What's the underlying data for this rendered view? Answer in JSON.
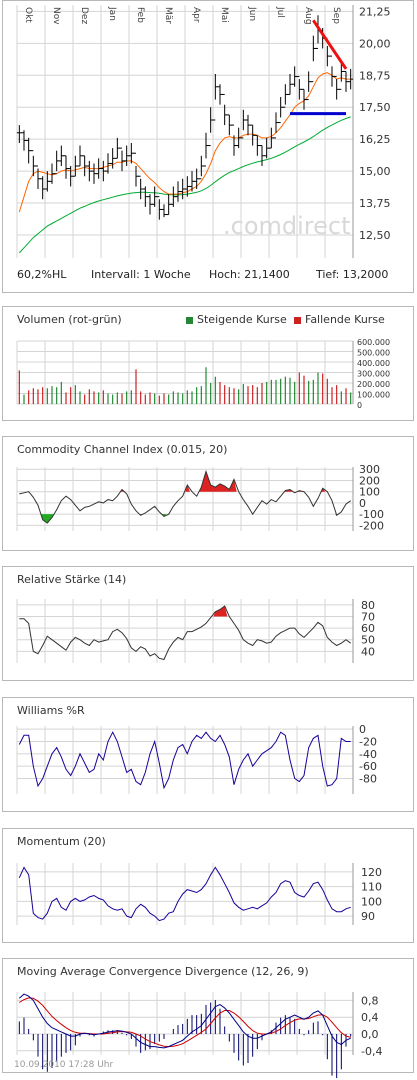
{
  "main": {
    "info": {
      "hl": "60,2%HL",
      "interval": "Intervall: 1 Woche",
      "high": "Hoch: 21,1400",
      "low": "Tief: 13,2000"
    },
    "watermark": ".comdirect",
    "colors": {
      "price": "#000000",
      "ma_short": "#ff6600",
      "ma_long": "#00aa33",
      "trend_red": "#ee1111",
      "support_blue": "#0000cc",
      "grid": "#cccccc"
    }
  },
  "volume_panel": {
    "title": "Volumen (rot-grün)",
    "legend_up": "Steigende Kurse",
    "legend_down": "Fallende Kurse",
    "color_up": "#228833",
    "color_down": "#cc2222"
  },
  "cci_panel": {
    "title": "Commodity Channel Index (0.015, 20)"
  },
  "rsi_panel": {
    "title": "Relative Stärke (14)"
  },
  "williams_panel": {
    "title": "Williams %R"
  },
  "momentum_panel": {
    "title": "Momentum (20)"
  },
  "macd_panel": {
    "title": "Moving Average Convergence Divergence (12, 26, 9)"
  },
  "footer": {
    "timestamp": "10.09.2010 17:28 Uhr"
  },
  "chart_data": [
    {
      "type": "candlestick",
      "x_labels": [
        "Okt",
        "Nov",
        "Dez",
        "Jan",
        "Feb",
        "Mär",
        "Apr",
        "Mai",
        "Jun",
        "Jul",
        "Aug",
        "Sep"
      ],
      "y_ticks": [
        "21,25",
        "20,00",
        "18,75",
        "17,50",
        "16,25",
        "15,00",
        "13,75",
        "12,50"
      ],
      "ylim": [
        11.6,
        21.5
      ],
      "grid": true,
      "close": [
        16.5,
        16.2,
        15.8,
        15.2,
        14.7,
        14.3,
        14.6,
        14.9,
        15.4,
        15.6,
        15.1,
        14.8,
        15.2,
        15.6,
        15.2,
        15.0,
        14.9,
        15.1,
        15.0,
        15.3,
        15.5,
        15.9,
        15.4,
        15.6,
        15.7,
        14.8,
        14.3,
        14.0,
        13.7,
        14.0,
        13.5,
        13.3,
        13.7,
        14.0,
        14.2,
        14.3,
        14.4,
        14.6,
        14.7,
        15.2,
        16.0,
        17.0,
        18.3,
        18.0,
        17.2,
        16.8,
        16.0,
        16.3,
        17.0,
        16.8,
        16.4,
        16.0,
        15.6,
        15.9,
        16.3,
        16.9,
        17.5,
        18.0,
        18.4,
        18.7,
        18.2,
        17.8,
        18.5,
        19.8,
        20.5,
        20.2,
        19.5,
        18.7,
        18.2,
        18.9,
        18.5,
        18.6
      ],
      "high": [
        16.8,
        16.6,
        16.3,
        15.6,
        15.1,
        14.8,
        15.0,
        15.3,
        15.8,
        16.0,
        15.6,
        15.2,
        15.6,
        16.0,
        15.6,
        15.4,
        15.3,
        15.5,
        15.4,
        15.7,
        15.9,
        16.3,
        15.8,
        16.0,
        16.1,
        15.2,
        14.7,
        14.4,
        14.1,
        14.4,
        13.9,
        13.7,
        14.1,
        14.4,
        14.6,
        14.7,
        14.8,
        15.0,
        15.1,
        15.6,
        16.5,
        17.5,
        18.8,
        18.4,
        17.6,
        17.2,
        16.4,
        16.7,
        17.4,
        17.2,
        16.8,
        16.4,
        16.0,
        16.3,
        16.7,
        17.3,
        17.9,
        18.4,
        18.8,
        19.1,
        18.6,
        18.2,
        18.9,
        20.3,
        21.1,
        20.6,
        19.9,
        19.1,
        18.6,
        19.3,
        18.9,
        19.0
      ],
      "low": [
        16.1,
        15.8,
        15.3,
        14.8,
        14.3,
        13.9,
        14.2,
        14.5,
        15.0,
        15.2,
        14.7,
        14.4,
        14.8,
        15.2,
        14.8,
        14.6,
        14.5,
        14.7,
        14.6,
        14.9,
        15.1,
        15.5,
        15.0,
        15.2,
        15.3,
        14.4,
        13.9,
        13.6,
        13.3,
        13.6,
        13.1,
        13.2,
        13.3,
        13.6,
        13.8,
        13.9,
        14.0,
        14.2,
        14.3,
        14.8,
        15.5,
        16.5,
        17.8,
        17.6,
        16.8,
        16.4,
        15.6,
        15.9,
        16.6,
        16.4,
        16.0,
        15.6,
        15.2,
        15.5,
        15.9,
        16.5,
        17.1,
        17.6,
        18.0,
        18.3,
        17.8,
        17.4,
        18.1,
        19.3,
        20.0,
        19.8,
        19.1,
        18.3,
        17.8,
        18.5,
        18.1,
        18.2
      ],
      "ma_short": [
        13.4,
        14.0,
        14.6,
        14.9,
        15.0,
        14.95,
        14.9,
        14.85,
        14.9,
        15.0,
        15.05,
        15.0,
        15.05,
        15.1,
        15.15,
        15.1,
        15.1,
        15.1,
        15.15,
        15.2,
        15.25,
        15.35,
        15.35,
        15.4,
        15.4,
        15.3,
        15.1,
        14.9,
        14.7,
        14.55,
        14.35,
        14.2,
        14.1,
        14.1,
        14.1,
        14.15,
        14.2,
        14.3,
        14.4,
        14.6,
        14.9,
        15.3,
        15.8,
        16.1,
        16.3,
        16.35,
        16.3,
        16.3,
        16.4,
        16.45,
        16.45,
        16.4,
        16.3,
        16.3,
        16.35,
        16.5,
        16.7,
        16.95,
        17.2,
        17.5,
        17.65,
        17.75,
        17.95,
        18.3,
        18.65,
        18.8,
        18.85,
        18.75,
        18.6,
        18.65,
        18.6,
        18.6
      ],
      "ma_long": [
        11.8,
        12.0,
        12.2,
        12.4,
        12.55,
        12.7,
        12.85,
        12.95,
        13.05,
        13.15,
        13.25,
        13.35,
        13.45,
        13.55,
        13.62,
        13.7,
        13.77,
        13.83,
        13.88,
        13.93,
        13.98,
        14.03,
        14.07,
        14.11,
        14.14,
        14.16,
        14.17,
        14.17,
        14.16,
        14.15,
        14.13,
        14.1,
        14.08,
        14.07,
        14.07,
        14.08,
        14.1,
        14.13,
        14.17,
        14.23,
        14.32,
        14.44,
        14.58,
        14.72,
        14.84,
        14.94,
        15.02,
        15.1,
        15.18,
        15.25,
        15.31,
        15.36,
        15.4,
        15.45,
        15.5,
        15.57,
        15.65,
        15.74,
        15.84,
        15.95,
        16.05,
        16.14,
        16.24,
        16.35,
        16.48,
        16.6,
        16.71,
        16.81,
        16.9,
        16.99,
        17.06,
        17.12
      ],
      "trend_line": [
        [
          63,
          20.9
        ],
        [
          70,
          19.0
        ]
      ],
      "support_line": [
        [
          58,
          17.25
        ],
        [
          70,
          17.25
        ]
      ]
    },
    {
      "type": "bar",
      "name": "Volumen",
      "y_ticks": [
        "600.000",
        "500.000",
        "400.000",
        "300.000",
        "200.000",
        "100.000",
        "0"
      ],
      "ylim": [
        0,
        600000
      ],
      "values": [
        320000,
        90000,
        130000,
        150000,
        140000,
        160000,
        150000,
        170000,
        160000,
        210000,
        110000,
        160000,
        180000,
        120000,
        90000,
        140000,
        120000,
        110000,
        130000,
        100000,
        90000,
        110000,
        100000,
        120000,
        130000,
        330000,
        120000,
        90000,
        110000,
        100000,
        80000,
        100000,
        90000,
        120000,
        110000,
        100000,
        130000,
        120000,
        160000,
        170000,
        350000,
        200000,
        260000,
        210000,
        180000,
        160000,
        150000,
        140000,
        190000,
        170000,
        180000,
        160000,
        200000,
        210000,
        230000,
        230000,
        240000,
        260000,
        250000,
        210000,
        300000,
        270000,
        220000,
        230000,
        300000,
        290000,
        240000,
        160000,
        180000,
        120000,
        150000,
        110000
      ],
      "rising": [
        false,
        true,
        false,
        false,
        false,
        false,
        true,
        true,
        true,
        true,
        false,
        false,
        true,
        true,
        false,
        false,
        false,
        true,
        false,
        true,
        true,
        true,
        false,
        true,
        true,
        false,
        false,
        false,
        false,
        true,
        false,
        false,
        true,
        true,
        true,
        true,
        true,
        true,
        true,
        true,
        true,
        true,
        true,
        false,
        false,
        false,
        false,
        true,
        true,
        false,
        false,
        false,
        false,
        true,
        true,
        true,
        true,
        true,
        true,
        true,
        false,
        false,
        true,
        true,
        true,
        false,
        false,
        false,
        false,
        true,
        false,
        true
      ]
    },
    {
      "type": "line",
      "name": "Commodity Channel Index",
      "y_ticks": [
        "300",
        "200",
        "100",
        "0",
        "-100",
        "-200"
      ],
      "ylim": [
        -250,
        320
      ],
      "overbought": 100,
      "oversold": -100,
      "values": [
        80,
        90,
        100,
        50,
        -20,
        -150,
        -180,
        -130,
        -60,
        20,
        60,
        30,
        -20,
        -70,
        -40,
        -30,
        -10,
        10,
        0,
        30,
        20,
        60,
        120,
        80,
        -10,
        -70,
        -110,
        -90,
        -60,
        -30,
        -80,
        -120,
        -100,
        -30,
        20,
        60,
        160,
        100,
        60,
        140,
        280,
        160,
        140,
        170,
        150,
        120,
        210,
        100,
        30,
        -30,
        -100,
        -40,
        20,
        -10,
        30,
        10,
        60,
        110,
        120,
        90,
        110,
        100,
        50,
        -30,
        40,
        130,
        100,
        20,
        -110,
        -80,
        -10,
        20
      ]
    },
    {
      "type": "line",
      "name": "Relative Stärke",
      "y_ticks": [
        "80",
        "70",
        "60",
        "50",
        "40"
      ],
      "ylim": [
        30,
        85
      ],
      "overbought": 70,
      "values": [
        68,
        68,
        64,
        40,
        38,
        45,
        53,
        50,
        47,
        44,
        41,
        48,
        52,
        50,
        47,
        45,
        50,
        48,
        49,
        50,
        57,
        59,
        56,
        51,
        43,
        40,
        44,
        42,
        36,
        38,
        34,
        33,
        42,
        48,
        52,
        50,
        57,
        57,
        59,
        61,
        64,
        69,
        74,
        76,
        79,
        70,
        64,
        58,
        50,
        47,
        45,
        50,
        49,
        47,
        48,
        53,
        56,
        58,
        60,
        60,
        55,
        52,
        56,
        60,
        65,
        62,
        52,
        48,
        45,
        47,
        50,
        47
      ]
    },
    {
      "type": "line",
      "name": "Williams %R",
      "y_ticks": [
        "0",
        "-20",
        "-40",
        "-60",
        "-80"
      ],
      "ylim": [
        -105,
        5
      ],
      "values": [
        -25,
        -10,
        -10,
        -60,
        -92,
        -80,
        -60,
        -40,
        -30,
        -45,
        -65,
        -75,
        -60,
        -40,
        -55,
        -70,
        -65,
        -40,
        -50,
        -20,
        -5,
        -20,
        -45,
        -70,
        -65,
        -85,
        -90,
        -70,
        -40,
        -20,
        -55,
        -95,
        -80,
        -50,
        -30,
        -25,
        -40,
        -20,
        -10,
        -15,
        -5,
        -15,
        -20,
        -10,
        -25,
        -45,
        -90,
        -65,
        -50,
        -40,
        -60,
        -50,
        -40,
        -35,
        -30,
        -20,
        -5,
        -10,
        -50,
        -80,
        -85,
        -75,
        -30,
        -15,
        -10,
        -60,
        -92,
        -90,
        -80,
        -15,
        -20,
        -20
      ]
    },
    {
      "type": "line",
      "name": "Momentum",
      "y_ticks": [
        "120",
        "110",
        "100",
        "90"
      ],
      "ylim": [
        84,
        126
      ],
      "values": [
        116,
        123,
        118,
        92,
        89,
        88,
        92,
        100,
        102,
        96,
        94,
        100,
        102,
        100,
        101,
        103,
        104,
        102,
        101,
        97,
        95,
        94,
        95,
        90,
        89,
        95,
        98,
        96,
        92,
        90,
        87,
        88,
        92,
        93,
        100,
        105,
        108,
        107,
        106,
        108,
        112,
        118,
        123,
        118,
        112,
        106,
        99,
        96,
        94,
        95,
        96,
        95,
        97,
        99,
        103,
        106,
        112,
        114,
        113,
        106,
        104,
        103,
        107,
        112,
        113,
        108,
        101,
        95,
        93,
        93,
        95,
        96
      ]
    },
    {
      "type": "line",
      "name": "MACD",
      "y_ticks": [
        "0,8",
        "0,4",
        "0,0",
        "-0,4"
      ],
      "ylim": [
        -0.5,
        1.0
      ],
      "macd": [
        0.85,
        0.95,
        0.9,
        0.8,
        0.6,
        0.4,
        0.25,
        0.15,
        0.1,
        0.05,
        0.0,
        -0.05,
        -0.05,
        0.0,
        0.02,
        0.0,
        -0.02,
        0.0,
        0.02,
        0.05,
        0.06,
        0.08,
        0.07,
        0.04,
        0.0,
        -0.1,
        -0.2,
        -0.25,
        -0.3,
        -0.3,
        -0.32,
        -0.33,
        -0.3,
        -0.25,
        -0.2,
        -0.15,
        -0.05,
        0.05,
        0.12,
        0.2,
        0.35,
        0.5,
        0.65,
        0.7,
        0.62,
        0.5,
        0.35,
        0.2,
        0.05,
        -0.05,
        -0.1,
        -0.1,
        -0.05,
        0.0,
        0.05,
        0.15,
        0.25,
        0.35,
        0.4,
        0.45,
        0.4,
        0.35,
        0.4,
        0.5,
        0.55,
        0.45,
        0.2,
        -0.05,
        -0.2,
        -0.25,
        -0.15,
        -0.1
      ],
      "signal": [
        0.75,
        0.82,
        0.86,
        0.85,
        0.78,
        0.68,
        0.55,
        0.42,
        0.32,
        0.23,
        0.15,
        0.08,
        0.04,
        0.02,
        0.02,
        0.01,
        0.0,
        0.0,
        0.0,
        0.02,
        0.03,
        0.05,
        0.06,
        0.05,
        0.04,
        0.0,
        -0.05,
        -0.12,
        -0.18,
        -0.22,
        -0.26,
        -0.29,
        -0.3,
        -0.29,
        -0.27,
        -0.23,
        -0.17,
        -0.1,
        -0.03,
        0.04,
        0.12,
        0.25,
        0.38,
        0.5,
        0.56,
        0.56,
        0.5,
        0.41,
        0.3,
        0.18,
        0.08,
        0.02,
        0.0,
        0.0,
        0.02,
        0.06,
        0.12,
        0.2,
        0.27,
        0.33,
        0.36,
        0.36,
        0.37,
        0.41,
        0.45,
        0.46,
        0.4,
        0.28,
        0.15,
        0.03,
        -0.05,
        -0.08
      ]
    }
  ]
}
